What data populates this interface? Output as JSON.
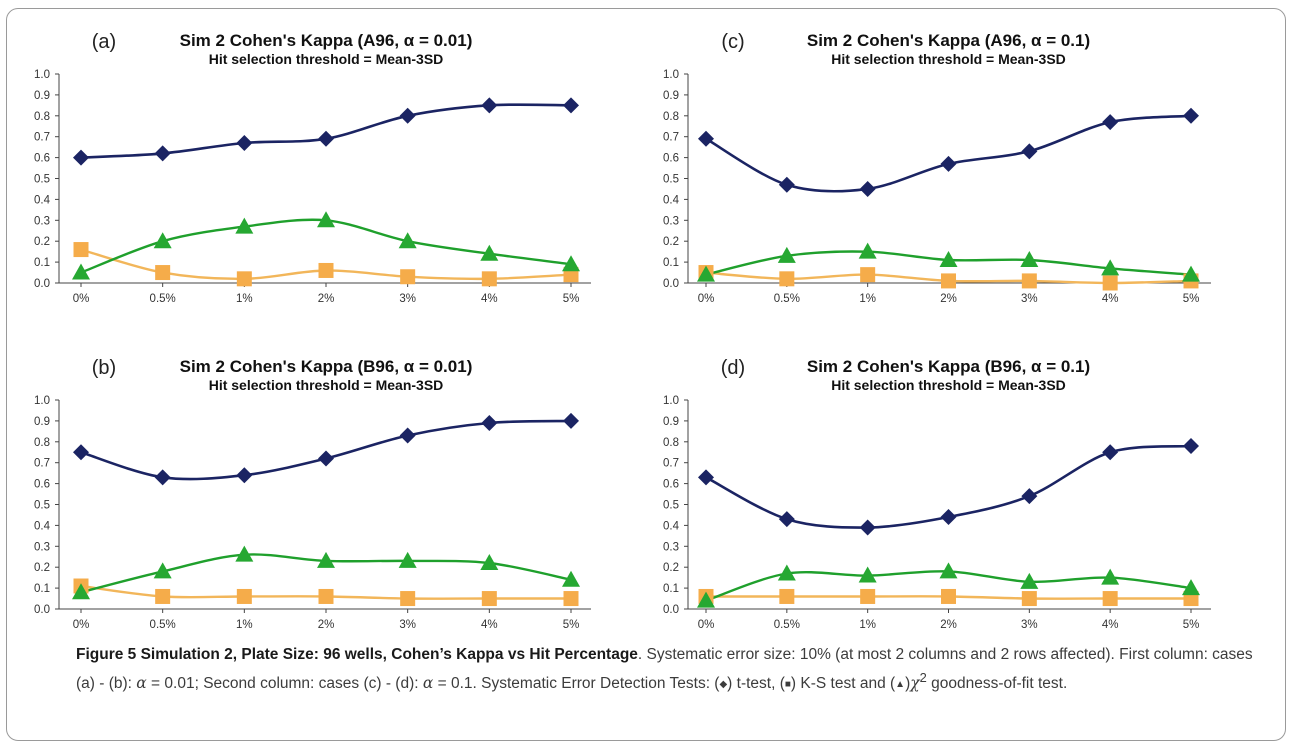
{
  "colors": {
    "t_test": "#1b2463",
    "ks_test": "#f5ac4a",
    "chi2_test": "#26a832",
    "chi2_line": "#1fa02c",
    "ks_line": "#f2b65a",
    "frame": "#9a9a9a"
  },
  "chart_data": [
    {
      "type": "line",
      "panel_label": "(a)",
      "title": "Sim 2 Cohen's Kappa (A96, α = 0.01)",
      "subtitle": "Hit selection threshold = Mean-3SD",
      "categories": [
        "0%",
        "0.5%",
        "1%",
        "2%",
        "3%",
        "4%",
        "5%"
      ],
      "ylim": [
        0,
        1
      ],
      "yticks": [
        "0.0",
        "0.1",
        "0.2",
        "0.3",
        "0.4",
        "0.5",
        "0.6",
        "0.7",
        "0.8",
        "0.9",
        "1.0"
      ],
      "grid": false,
      "smooth": true,
      "series": [
        {
          "marker": "diamond",
          "values": [
            0.6,
            0.62,
            0.67,
            0.69,
            0.8,
            0.85,
            0.85
          ]
        },
        {
          "marker": "triangle",
          "values": [
            0.05,
            0.2,
            0.27,
            0.3,
            0.2,
            0.14,
            0.09
          ]
        },
        {
          "marker": "square",
          "values": [
            0.16,
            0.05,
            0.02,
            0.06,
            0.03,
            0.02,
            0.04
          ]
        }
      ]
    },
    {
      "type": "line",
      "panel_label": "(c)",
      "title": "Sim 2 Cohen's Kappa (A96, α = 0.1)",
      "subtitle": "Hit selection threshold = Mean-3SD",
      "categories": [
        "0%",
        "0.5%",
        "1%",
        "2%",
        "3%",
        "4%",
        "5%"
      ],
      "ylim": [
        0,
        1
      ],
      "yticks": [
        "0.0",
        "0.1",
        "0.2",
        "0.3",
        "0.4",
        "0.5",
        "0.6",
        "0.7",
        "0.8",
        "0.9",
        "1.0"
      ],
      "grid": false,
      "smooth": true,
      "series": [
        {
          "marker": "diamond",
          "values": [
            0.69,
            0.47,
            0.45,
            0.57,
            0.63,
            0.77,
            0.8
          ]
        },
        {
          "marker": "triangle",
          "values": [
            0.04,
            0.13,
            0.15,
            0.11,
            0.11,
            0.07,
            0.04
          ]
        },
        {
          "marker": "square",
          "values": [
            0.05,
            0.02,
            0.04,
            0.01,
            0.01,
            0.0,
            0.01
          ]
        }
      ]
    },
    {
      "type": "line",
      "panel_label": "(b)",
      "title": "Sim 2 Cohen's Kappa (B96, α = 0.01)",
      "subtitle": "Hit selection threshold = Mean-3SD",
      "categories": [
        "0%",
        "0.5%",
        "1%",
        "2%",
        "3%",
        "4%",
        "5%"
      ],
      "ylim": [
        0,
        1
      ],
      "yticks": [
        "0.0",
        "0.1",
        "0.2",
        "0.3",
        "0.4",
        "0.5",
        "0.6",
        "0.7",
        "0.8",
        "0.9",
        "1.0"
      ],
      "grid": false,
      "smooth": true,
      "series": [
        {
          "marker": "diamond",
          "values": [
            0.75,
            0.63,
            0.64,
            0.72,
            0.83,
            0.89,
            0.9
          ]
        },
        {
          "marker": "triangle",
          "values": [
            0.08,
            0.18,
            0.26,
            0.23,
            0.23,
            0.22,
            0.14
          ]
        },
        {
          "marker": "square",
          "values": [
            0.11,
            0.06,
            0.06,
            0.06,
            0.05,
            0.05,
            0.05
          ]
        }
      ]
    },
    {
      "type": "line",
      "panel_label": "(d)",
      "title": "Sim 2 Cohen's Kappa (B96, α = 0.1)",
      "subtitle": "Hit selection threshold = Mean-3SD",
      "categories": [
        "0%",
        "0.5%",
        "1%",
        "2%",
        "3%",
        "4%",
        "5%"
      ],
      "ylim": [
        0,
        1
      ],
      "yticks": [
        "0.0",
        "0.1",
        "0.2",
        "0.3",
        "0.4",
        "0.5",
        "0.6",
        "0.7",
        "0.8",
        "0.9",
        "1.0"
      ],
      "grid": false,
      "smooth": true,
      "series": [
        {
          "marker": "diamond",
          "values": [
            0.63,
            0.43,
            0.39,
            0.44,
            0.54,
            0.75,
            0.78
          ]
        },
        {
          "marker": "triangle",
          "values": [
            0.04,
            0.17,
            0.16,
            0.18,
            0.13,
            0.15,
            0.1
          ]
        },
        {
          "marker": "square",
          "values": [
            0.06,
            0.06,
            0.06,
            0.06,
            0.05,
            0.05,
            0.05
          ]
        }
      ]
    }
  ],
  "caption": {
    "title": "Figure 5 Simulation 2, Plate Size: 96 wells, Cohen’s Kappa vs Hit Percentage",
    "t1": ". Systematic error size: 10% (at most 2 columns and 2 rows affected). First column: cases (a) - (b): ",
    "alpha1": "α",
    "t2": " = 0.01; Second column: cases (c) - (d): ",
    "alpha2": "α",
    "t3": " = 0.1. Systematic Error Detection Tests: (",
    "diamond_glyph": "◆",
    "t4": ") t-test, (",
    "square_glyph": "■",
    "t5": ") K-S test and (",
    "triangle_glyph": "▲",
    "chi": "χ",
    "chi_sup": "2",
    "t6": " goodness-of-fit test."
  }
}
